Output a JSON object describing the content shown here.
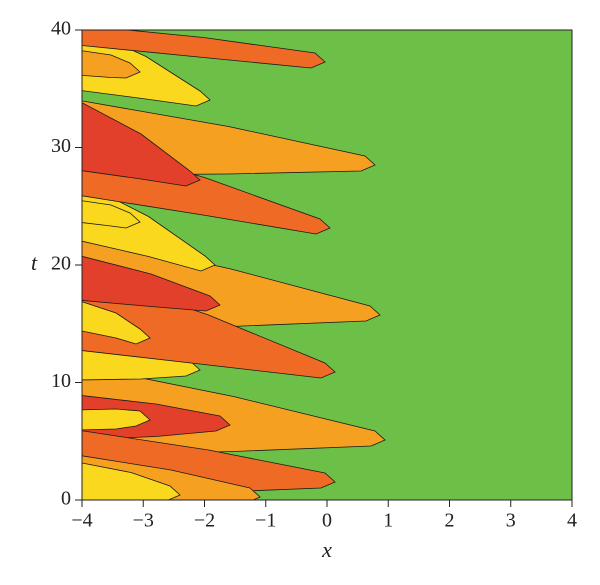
{
  "chart_data": {
    "type": "contour",
    "xlabel": "x",
    "ylabel": "t",
    "xlim": [
      -4,
      4
    ],
    "ylim": [
      0,
      40
    ],
    "xticks": [
      {
        "value": -4,
        "label": "−4"
      },
      {
        "value": -3,
        "label": "−3"
      },
      {
        "value": -2,
        "label": "−2"
      },
      {
        "value": -1,
        "label": "−1"
      },
      0,
      1,
      2,
      3,
      4
    ],
    "yticks": [
      0,
      10,
      20,
      30,
      40
    ],
    "background_color": "#6cbf47",
    "colors": [
      "#f9d81e",
      "#f6a021",
      "#ef6a25",
      "#e2402a"
    ]
  }
}
